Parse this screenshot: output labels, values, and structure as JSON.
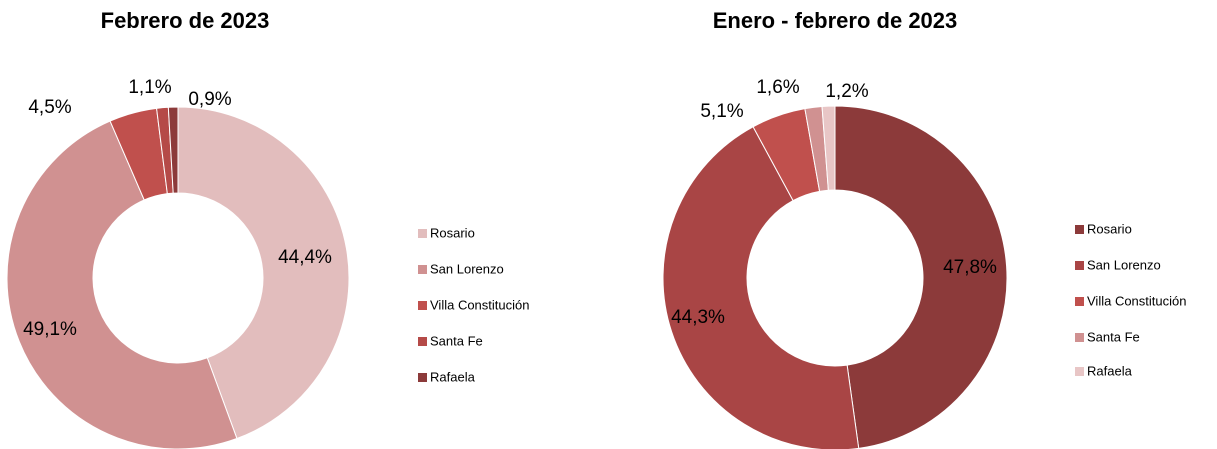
{
  "chart_data": [
    {
      "type": "donut",
      "title": "Febrero de 2023",
      "categories": [
        "Rosario",
        "San Lorenzo",
        "Villa Constitución",
        "Santa Fe",
        "Rafaela"
      ],
      "values": [
        44.4,
        49.1,
        4.5,
        1.1,
        0.9
      ],
      "value_labels": [
        "44,4%",
        "49,1%",
        "4,5%",
        "1,1%",
        "0,9%"
      ],
      "colors": [
        "#e2bdbd",
        "#d09191",
        "#c0504d",
        "#b54a48",
        "#8c3a3a"
      ]
    },
    {
      "type": "donut",
      "title": "Enero - febrero de 2023",
      "categories": [
        "Rosario",
        "San Lorenzo",
        "Villa Constitución",
        "Santa Fe",
        "Rafaela"
      ],
      "values": [
        47.8,
        44.3,
        5.1,
        1.6,
        1.2
      ],
      "value_labels": [
        "47,8%",
        "44,3%",
        "5,1%",
        "1,6%",
        "1,2%"
      ],
      "colors": [
        "#8c3a3a",
        "#a94545",
        "#c0504d",
        "#d09191",
        "#e8c6c6"
      ]
    }
  ]
}
